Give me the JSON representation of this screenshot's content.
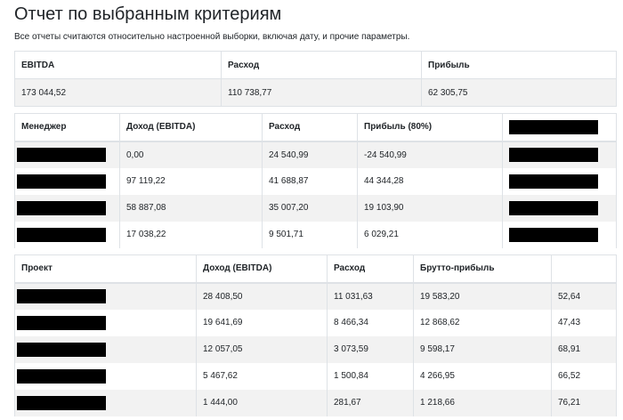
{
  "page": {
    "title": "Отчет по выбранным критериям",
    "subtitle": "Все отчеты считаются относительно настроенной выборки, включая дату, и прочие параметры."
  },
  "summary": {
    "headers": [
      "EBITDA",
      "Расход",
      "Прибыль"
    ],
    "values": [
      "173 044,52",
      "110 738,77",
      "62 305,75"
    ]
  },
  "managers": {
    "headers": [
      "Менеджер",
      "Доход (EBITDA)",
      "Расход",
      "Прибыль (80%)"
    ],
    "rows": [
      {
        "income": "0,00",
        "expense": "24 540,99",
        "profit": "-24 540,99"
      },
      {
        "income": "97 119,22",
        "expense": "41 688,87",
        "profit": "44 344,28"
      },
      {
        "income": "58 887,08",
        "expense": "35 007,20",
        "profit": "19 103,90"
      },
      {
        "income": "17 038,22",
        "expense": "9 501,71",
        "profit": "6 029,21"
      }
    ]
  },
  "projects": {
    "headers": [
      "Проект",
      "Доход (EBITDA)",
      "Расход",
      "Брутто-прибыль",
      ""
    ],
    "rows": [
      {
        "income": "28 408,50",
        "expense": "11 031,63",
        "gross": "19 583,20",
        "pct": "52,64"
      },
      {
        "income": "19 641,69",
        "expense": "8 466,34",
        "gross": "12 868,62",
        "pct": "47,43"
      },
      {
        "income": "12 057,05",
        "expense": "3 073,59",
        "gross": "9 598,17",
        "pct": "68,91"
      },
      {
        "income": "5 467,62",
        "expense": "1 500,84",
        "gross": "4 266,95",
        "pct": "66,52"
      },
      {
        "income": "1 444,00",
        "expense": "281,67",
        "gross": "1 218,66",
        "pct": "76,21"
      }
    ]
  }
}
